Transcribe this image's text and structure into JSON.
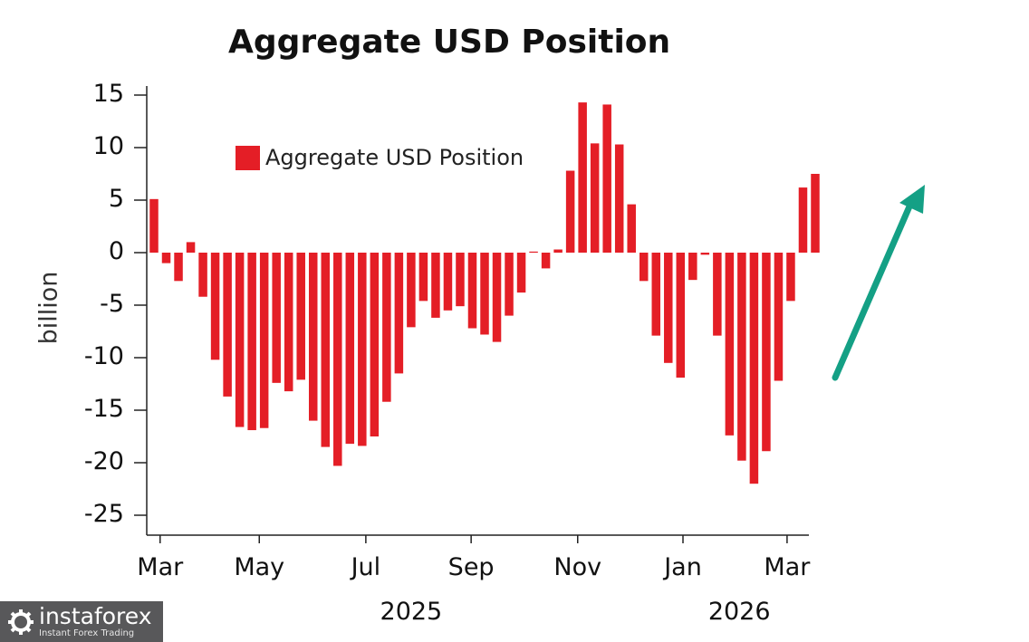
{
  "chart_data": {
    "type": "bar",
    "title": "Aggregate USD Position",
    "ylabel": "billion",
    "xlabel": "",
    "ylim": [
      -27,
      17
    ],
    "yticks": [
      15,
      10,
      5,
      0,
      -5,
      -10,
      -15,
      -20,
      -25
    ],
    "yticklabels": [
      "15",
      "10",
      "5",
      "0",
      "-5",
      "-10",
      "-15",
      "-20",
      "-25"
    ],
    "legend": {
      "label": "Aggregate USD Position",
      "position": "top-left"
    },
    "series": [
      {
        "name": "Aggregate USD Position",
        "color": "#e41e26",
        "values": [
          5.1,
          -1.0,
          -2.7,
          1.0,
          -4.2,
          -10.2,
          -13.7,
          -16.6,
          -16.9,
          -16.7,
          -12.4,
          -13.2,
          -12.1,
          -16.0,
          -18.5,
          -20.3,
          -18.2,
          -18.4,
          -17.5,
          -14.2,
          -11.5,
          -7.1,
          -4.6,
          -6.2,
          -5.5,
          -5.1,
          -7.2,
          -7.8,
          -8.5,
          -6.0,
          -3.8,
          0.1,
          -1.5,
          0.3,
          7.8,
          14.3,
          10.4,
          14.1,
          10.3,
          4.6,
          -2.7,
          -7.9,
          -10.5,
          -11.9,
          -2.6,
          -0.2,
          -7.9,
          -17.4,
          -19.8,
          -22.0,
          -18.9,
          -12.2,
          -4.6,
          6.2,
          7.5
        ]
      }
    ],
    "xticks": [
      {
        "label": "Mar",
        "index": 0.5
      },
      {
        "label": "May",
        "index": 8.6
      },
      {
        "label": "Jul",
        "index": 17.3
      },
      {
        "label": "Sep",
        "index": 25.9
      },
      {
        "label": "Nov",
        "index": 34.6
      },
      {
        "label": "Jan",
        "index": 43.2
      },
      {
        "label": "Mar",
        "index": 51.7
      }
    ],
    "years": [
      {
        "label": "2025",
        "index": 21.0
      },
      {
        "label": "2026",
        "index": 47.8
      }
    ],
    "annotation": {
      "type": "arrow",
      "direction": "up-right",
      "color": "#14a085"
    }
  },
  "watermark": {
    "name": "instaforex",
    "tagline": "Instant Forex Trading"
  }
}
